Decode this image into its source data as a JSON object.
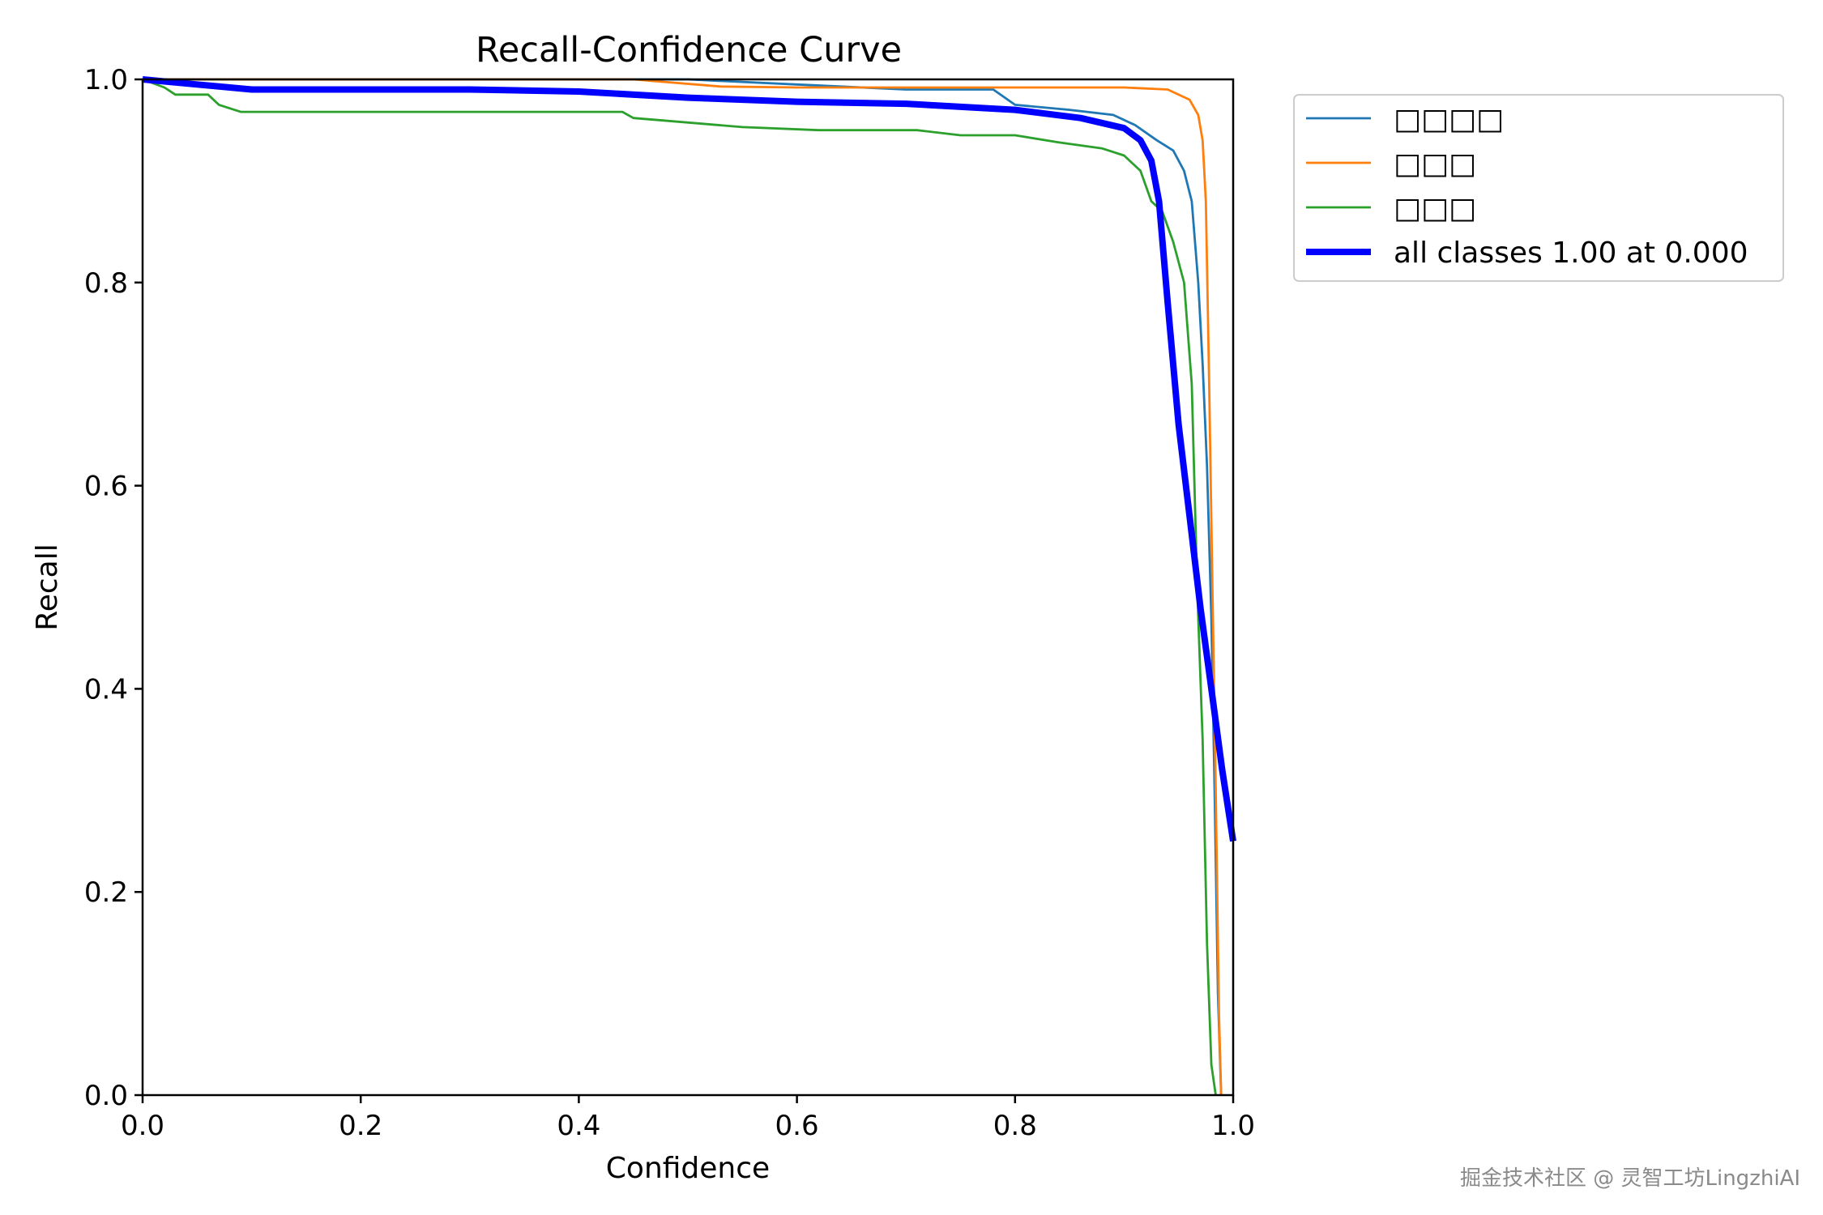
{
  "chart_data": {
    "type": "line",
    "title": "Recall-Confidence Curve",
    "xlabel": "Confidence",
    "ylabel": "Recall",
    "xlim": [
      0.0,
      1.0
    ],
    "ylim": [
      0.0,
      1.0
    ],
    "xticks": [
      "0.0",
      "0.2",
      "0.4",
      "0.6",
      "0.8",
      "1.0"
    ],
    "yticks": [
      "0.0",
      "0.2",
      "0.4",
      "0.6",
      "0.8",
      "1.0"
    ],
    "grid": false,
    "legend_position": "outside upper right",
    "series": [
      {
        "name": "□□□□",
        "color": "#1f77b4",
        "width": "thin",
        "points": [
          [
            0.0,
            1.0
          ],
          [
            0.5,
            1.0
          ],
          [
            0.6,
            0.995
          ],
          [
            0.7,
            0.99
          ],
          [
            0.78,
            0.99
          ],
          [
            0.8,
            0.975
          ],
          [
            0.85,
            0.97
          ],
          [
            0.89,
            0.965
          ],
          [
            0.91,
            0.955
          ],
          [
            0.93,
            0.94
          ],
          [
            0.945,
            0.93
          ],
          [
            0.955,
            0.91
          ],
          [
            0.962,
            0.88
          ],
          [
            0.968,
            0.8
          ],
          [
            0.972,
            0.72
          ],
          [
            0.976,
            0.62
          ],
          [
            0.98,
            0.47
          ],
          [
            0.983,
            0.3
          ],
          [
            0.986,
            0.1
          ],
          [
            0.989,
            0.0
          ]
        ]
      },
      {
        "name": "□□□",
        "color": "#ff7f0e",
        "width": "thin",
        "points": [
          [
            0.0,
            1.0
          ],
          [
            0.45,
            1.0
          ],
          [
            0.53,
            0.993
          ],
          [
            0.6,
            0.992
          ],
          [
            0.7,
            0.992
          ],
          [
            0.8,
            0.992
          ],
          [
            0.9,
            0.992
          ],
          [
            0.94,
            0.99
          ],
          [
            0.96,
            0.98
          ],
          [
            0.968,
            0.965
          ],
          [
            0.972,
            0.94
          ],
          [
            0.975,
            0.88
          ],
          [
            0.978,
            0.7
          ],
          [
            0.981,
            0.5
          ],
          [
            0.984,
            0.3
          ],
          [
            0.987,
            0.08
          ],
          [
            0.989,
            0.0
          ]
        ]
      },
      {
        "name": "□□□",
        "color": "#2ca02c",
        "width": "thin",
        "points": [
          [
            0.0,
            1.0
          ],
          [
            0.02,
            0.992
          ],
          [
            0.03,
            0.985
          ],
          [
            0.06,
            0.985
          ],
          [
            0.07,
            0.975
          ],
          [
            0.09,
            0.968
          ],
          [
            0.2,
            0.968
          ],
          [
            0.3,
            0.968
          ],
          [
            0.44,
            0.968
          ],
          [
            0.45,
            0.962
          ],
          [
            0.55,
            0.953
          ],
          [
            0.62,
            0.95
          ],
          [
            0.71,
            0.95
          ],
          [
            0.75,
            0.945
          ],
          [
            0.8,
            0.945
          ],
          [
            0.84,
            0.938
          ],
          [
            0.88,
            0.932
          ],
          [
            0.9,
            0.925
          ],
          [
            0.915,
            0.91
          ],
          [
            0.925,
            0.88
          ],
          [
            0.935,
            0.87
          ],
          [
            0.945,
            0.84
          ],
          [
            0.955,
            0.8
          ],
          [
            0.962,
            0.7
          ],
          [
            0.967,
            0.5
          ],
          [
            0.972,
            0.35
          ],
          [
            0.976,
            0.15
          ],
          [
            0.98,
            0.03
          ],
          [
            0.984,
            0.0
          ]
        ]
      },
      {
        "name": "all classes 1.00 at 0.000",
        "color": "#0000ff",
        "width": "thick",
        "points": [
          [
            0.0,
            1.0
          ],
          [
            0.05,
            0.995
          ],
          [
            0.1,
            0.99
          ],
          [
            0.2,
            0.99
          ],
          [
            0.3,
            0.99
          ],
          [
            0.4,
            0.988
          ],
          [
            0.5,
            0.982
          ],
          [
            0.6,
            0.978
          ],
          [
            0.7,
            0.976
          ],
          [
            0.8,
            0.97
          ],
          [
            0.86,
            0.962
          ],
          [
            0.9,
            0.952
          ],
          [
            0.915,
            0.94
          ],
          [
            0.925,
            0.92
          ],
          [
            0.932,
            0.88
          ],
          [
            0.94,
            0.78
          ],
          [
            0.95,
            0.66
          ],
          [
            0.96,
            0.57
          ],
          [
            0.97,
            0.48
          ],
          [
            0.98,
            0.4
          ],
          [
            0.99,
            0.32
          ],
          [
            1.0,
            0.25
          ]
        ]
      }
    ]
  },
  "watermark": "掘金技术社区 @ 灵智工坊LingzhiAI"
}
